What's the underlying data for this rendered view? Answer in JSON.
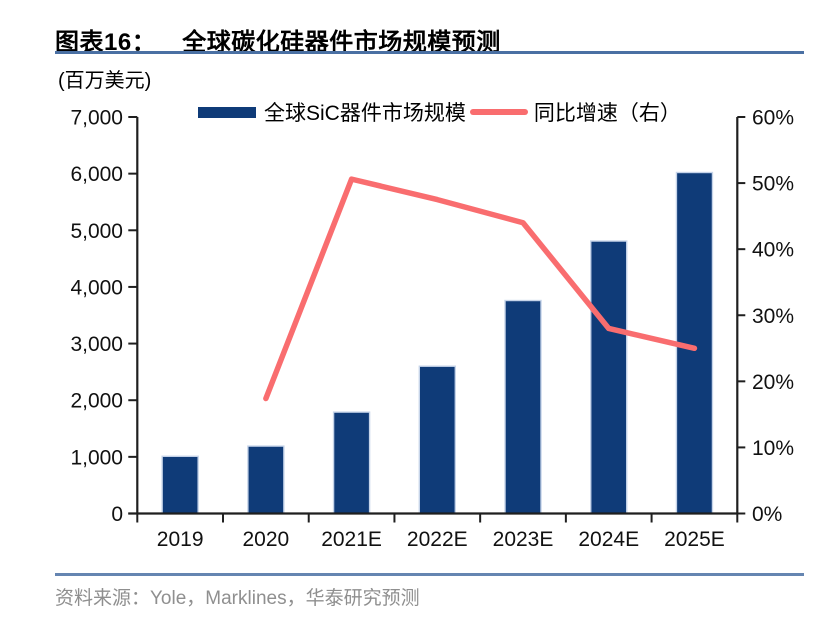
{
  "header": {
    "tag": "图表16：",
    "title": "全球碳化硅器件市场规模预测"
  },
  "unit_label": "(百万美元)",
  "legend": [
    {
      "type": "bar",
      "label": "全球SiC器件市场规模"
    },
    {
      "type": "line",
      "label": "同比增速（右）"
    }
  ],
  "footer": {
    "source": "资料来源：Yole，Marklines，华泰研究预测"
  },
  "colors": {
    "bar": "#0F3B78",
    "bar_edge": "#C6D4E9",
    "line": "#F96D6F",
    "axis": "#1F1F1F",
    "rule": "#4A70A3",
    "source_text": "#8F8F8F"
  },
  "chart_data": {
    "type": "bar",
    "subtype": "bar+line combo, dual axis",
    "title": "全球碳化硅器件市场规模预测",
    "unit": "百万美元",
    "categories": [
      "2019",
      "2020",
      "2021E",
      "2022E",
      "2023E",
      "2024E",
      "2025E"
    ],
    "series": [
      {
        "name": "全球SiC器件市场规模",
        "type": "bar",
        "axis": "left",
        "values": [
          1010,
          1190,
          1790,
          2600,
          3760,
          4810,
          6020
        ]
      },
      {
        "name": "同比增速（右）",
        "type": "line",
        "axis": "right",
        "values": [
          null,
          17.4,
          50.6,
          47.5,
          44,
          28,
          25
        ]
      }
    ],
    "left_axis": {
      "min": 0,
      "max": 7000,
      "step": 1000,
      "tick_labels": [
        "0",
        "1,000",
        "2,000",
        "3,000",
        "4,000",
        "5,000",
        "6,000",
        "7,000"
      ]
    },
    "right_axis": {
      "min": 0,
      "max": 60,
      "step": 10,
      "tick_labels": [
        "0%",
        "10%",
        "20%",
        "30%",
        "40%",
        "50%",
        "60%"
      ]
    },
    "grid": false,
    "legend_position": "top"
  }
}
